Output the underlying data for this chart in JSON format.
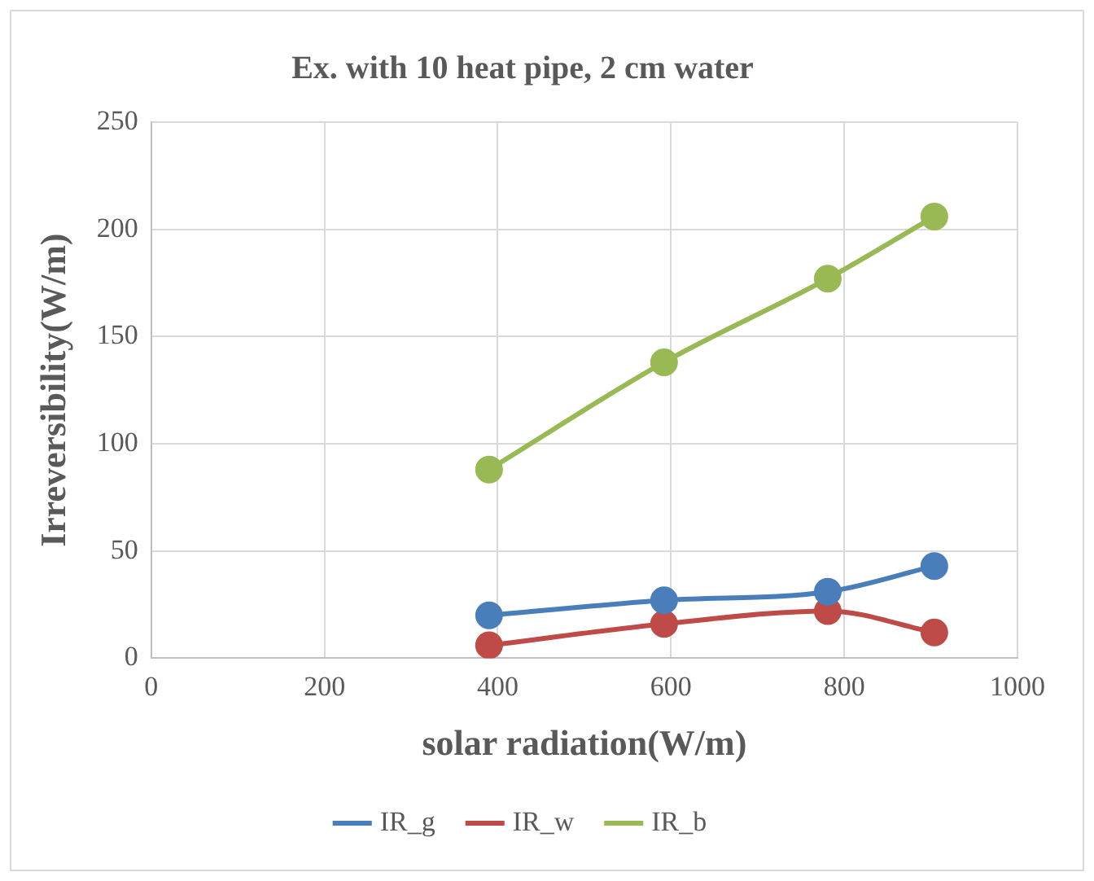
{
  "chart_data": {
    "type": "line",
    "title": "Ex. with 10 heat pipe, 2 cm water",
    "xlabel": "solar radiation(W/m)",
    "ylabel": "Irreversibility(W/m)",
    "x": [
      390,
      592,
      781,
      904
    ],
    "series": [
      {
        "name": "IR_g",
        "color": "#4a7ebb",
        "values": [
          20,
          27,
          31,
          43
        ]
      },
      {
        "name": "IR_w",
        "color": "#be4b48",
        "values": [
          6,
          16,
          22,
          12
        ]
      },
      {
        "name": "IR_b",
        "color": "#98b954",
        "values": [
          88,
          138,
          177,
          206
        ]
      }
    ],
    "xlim": [
      0,
      1000
    ],
    "xticks": [
      0,
      200,
      400,
      600,
      800,
      1000
    ],
    "ylim": [
      0,
      250
    ],
    "yticks": [
      0,
      50,
      100,
      150,
      200,
      250
    ],
    "grid": true,
    "legend": "bottom",
    "marker": "circle",
    "line_style": "solid"
  }
}
